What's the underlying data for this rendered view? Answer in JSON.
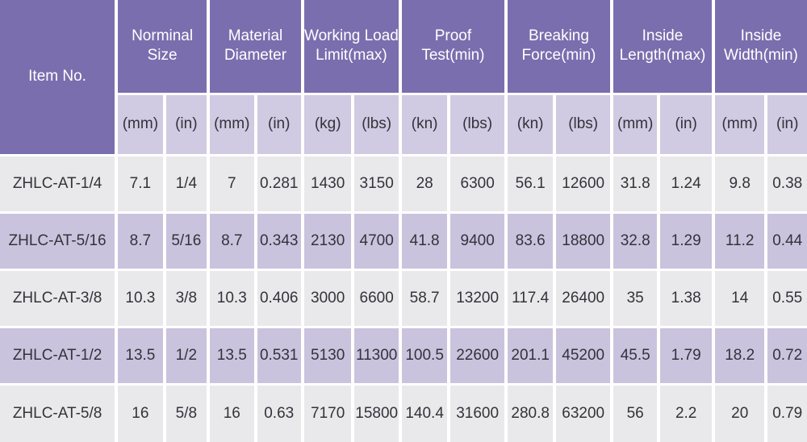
{
  "table": {
    "item_no_header": "Item No.",
    "groups": [
      {
        "label": "Norminal Size",
        "units": [
          "(mm)",
          "(in)"
        ]
      },
      {
        "label": "Material Diameter",
        "units": [
          "(mm)",
          "(in)"
        ]
      },
      {
        "label": "Working Load Limit(max)",
        "units": [
          "(kg)",
          "(lbs)"
        ]
      },
      {
        "label": "Proof Test(min)",
        "units": [
          "(kn)",
          "(lbs)"
        ]
      },
      {
        "label": "Breaking Force(min)",
        "units": [
          "(kn)",
          "(lbs)"
        ]
      },
      {
        "label": "Inside Length(max)",
        "units": [
          "(mm)",
          "(in)"
        ]
      },
      {
        "label": "Inside Width(min)",
        "units": [
          "(mm)",
          "(in)"
        ]
      }
    ],
    "rows": [
      {
        "item": "ZHLC-AT-1/4",
        "values": [
          "7.1",
          "1/4",
          "7",
          "0.281",
          "1430",
          "3150",
          "28",
          "6300",
          "56.1",
          "12600",
          "31.8",
          "1.24",
          "9.8",
          "0.38"
        ]
      },
      {
        "item": "ZHLC-AT-5/16",
        "values": [
          "8.7",
          "5/16",
          "8.7",
          "0.343",
          "2130",
          "4700",
          "41.8",
          "9400",
          "83.6",
          "18800",
          "32.8",
          "1.29",
          "11.2",
          "0.44"
        ]
      },
      {
        "item": "ZHLC-AT-3/8",
        "values": [
          "10.3",
          "3/8",
          "10.3",
          "0.406",
          "3000",
          "6600",
          "58.7",
          "13200",
          "117.4",
          "26400",
          "35",
          "1.38",
          "14",
          "0.55"
        ]
      },
      {
        "item": "ZHLC-AT-1/2",
        "values": [
          "13.5",
          "1/2",
          "13.5",
          "0.531",
          "5130",
          "11300",
          "100.5",
          "22600",
          "201.1",
          "45200",
          "45.5",
          "1.79",
          "18.2",
          "0.72"
        ]
      },
      {
        "item": "ZHLC-AT-5/8",
        "values": [
          "16",
          "5/8",
          "16",
          "0.63",
          "7170",
          "15800",
          "140.4",
          "31600",
          "280.8",
          "63200",
          "56",
          "2.2",
          "20",
          "0.79"
        ]
      }
    ],
    "colors": {
      "header_bg": "#7b6eae",
      "units_bg": "#d0cae2",
      "row_odd_bg": "#e9e9ec",
      "row_even_bg": "#cac3de",
      "grid": "#ffffff",
      "header_text": "#ffffff",
      "body_text": "#35323a"
    }
  }
}
